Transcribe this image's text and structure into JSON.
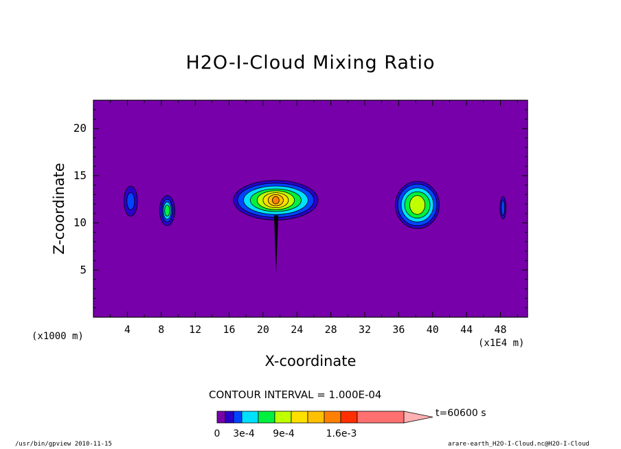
{
  "chart_data": {
    "type": "heatmap",
    "title": "H2O-I-Cloud Mixing Ratio",
    "xlabel": "X-coordinate",
    "ylabel": "Z-coordinate",
    "x_unit_left": "(x1000 m)",
    "x_unit_right": "(x1E4 m)",
    "xlim": [
      0,
      51.2
    ],
    "ylim": [
      0,
      23
    ],
    "xticks": [
      4,
      8,
      12,
      16,
      20,
      24,
      28,
      32,
      36,
      40,
      44,
      48
    ],
    "yticks": [
      5,
      10,
      15,
      20
    ],
    "contour_interval_text": "CONTOUR INTERVAL = 1.000E-04",
    "time_text": "t=60600 s",
    "background_color": "#7700aa",
    "colorbar": {
      "levels": [
        0,
        0.0001,
        0.0002,
        0.0003,
        0.0005,
        0.0007,
        0.0009,
        0.0011,
        0.0013,
        0.0015,
        0.0016,
        0.0017
      ],
      "colors": [
        "#7700aa",
        "#2a00c8",
        "#0044ff",
        "#00e0ff",
        "#00f040",
        "#c0ff00",
        "#ffe000",
        "#ffc000",
        "#ff8000",
        "#ff3000",
        "#ff7070",
        "#ffb0b0"
      ],
      "labels": [
        "0",
        "3e-4",
        "9e-4",
        "1.6e-3"
      ]
    },
    "features": [
      {
        "x": 4.4,
        "z": 12.3,
        "max_level": 2
      },
      {
        "x": 8.7,
        "z": 11.3,
        "max_level": 4
      },
      {
        "x": 21.5,
        "z": 12.4,
        "max_level": 8
      },
      {
        "x": 38.2,
        "z": 11.9,
        "max_level": 5
      },
      {
        "x": 48.3,
        "z": 11.6,
        "max_level": 2
      }
    ]
  },
  "footer": {
    "program": "/usr/bin/gpview  2010-11-15",
    "file": "arare-earth_H2O-I-Cloud.nc@H2O-I-Cloud"
  }
}
